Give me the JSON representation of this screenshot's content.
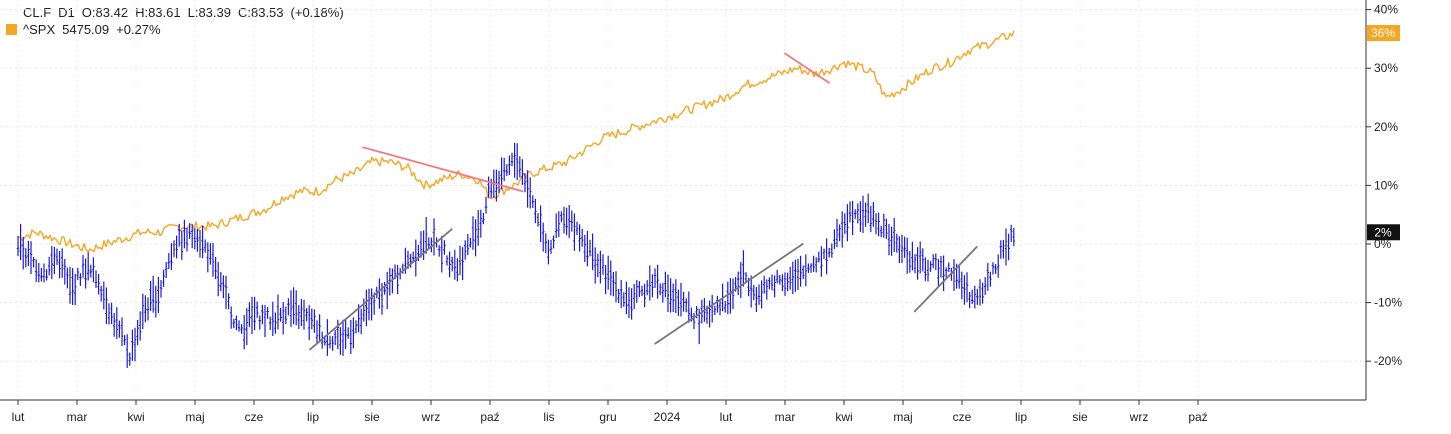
{
  "legend": {
    "primary": {
      "symbol": "CL.F",
      "interval": "D1",
      "open": "O:83.42",
      "high": "H:83.61",
      "low": "L:83.39",
      "close": "C:83.53",
      "change": "(+0.18%)"
    },
    "secondary": {
      "symbol": "^SPX",
      "value": "5475.09",
      "change": "+0.27%"
    }
  },
  "chart_data": {
    "type": "line",
    "title": "",
    "xlabel": "",
    "ylabel": "",
    "x_tick_labels": [
      "lut",
      "mar",
      "kwi",
      "maj",
      "cze",
      "lip",
      "sie",
      "wrz",
      "paź",
      "lis",
      "gru",
      "2024",
      "lut",
      "mar",
      "kwi",
      "maj",
      "cze",
      "lip",
      "sie",
      "wrz",
      "paź"
    ],
    "y_ticks": [
      40,
      30,
      20,
      10,
      0,
      -10,
      -20
    ],
    "y_tick_labels": [
      "40%",
      "30%",
      "20%",
      "10%",
      "0%",
      "-10%",
      "-20%"
    ],
    "ylim": [
      -26,
      41
    ],
    "xlim": [
      0,
      21.4
    ],
    "grid": true,
    "colors": {
      "primary": "#1a1adb",
      "secondary": "#f5a623",
      "resistance": "#f07a80",
      "support": "#777777"
    },
    "series": [
      {
        "name": "CL.F",
        "style": "ohlc",
        "badge": "2%",
        "x": [
          0.0,
          0.23,
          0.45,
          0.68,
          0.9,
          1.13,
          1.36,
          1.58,
          1.9,
          2.15,
          2.4,
          2.65,
          2.85,
          3.0,
          3.2,
          3.4,
          3.75,
          4.0,
          4.3,
          4.6,
          4.95,
          5.2,
          5.5,
          5.75,
          6.0,
          6.3,
          6.6,
          6.95,
          7.2,
          7.45,
          7.7,
          7.9,
          8.0,
          8.2,
          8.45,
          8.7,
          9.0,
          9.2,
          9.45,
          9.8,
          10.1,
          10.4,
          10.8,
          11.2,
          11.55,
          11.85,
          12.0,
          12.3,
          12.55,
          12.85,
          13.2,
          13.5,
          13.8,
          14.0,
          14.2,
          14.45,
          14.7,
          14.9,
          15.2,
          15.5,
          15.8,
          16.0,
          16.25,
          16.6,
          16.9
        ],
        "values": [
          0,
          -3,
          -5,
          -2,
          -8,
          -4,
          -6,
          -12,
          -19,
          -11,
          -8,
          0,
          1,
          2,
          -1,
          -6,
          -15,
          -12,
          -13,
          -11,
          -13,
          -16,
          -16,
          -14,
          -10,
          -7,
          -3,
          1,
          -1,
          -4,
          1,
          5,
          10,
          11,
          15,
          8,
          -1,
          4,
          3,
          -3,
          -7,
          -10,
          -6,
          -10,
          -13,
          -10,
          -10,
          -5,
          -9,
          -6,
          -6,
          -3,
          -1,
          4,
          6,
          5,
          2,
          0,
          -3,
          -4,
          -4,
          -7,
          -10,
          -3,
          2
        ]
      },
      {
        "name": "^SPX",
        "style": "line",
        "badge": "36%",
        "x": [
          0.0,
          0.3,
          0.6,
          0.9,
          1.2,
          1.5,
          1.8,
          2.1,
          2.4,
          2.7,
          3.0,
          3.3,
          3.6,
          3.9,
          4.2,
          4.5,
          4.8,
          5.1,
          5.4,
          5.7,
          6.0,
          6.3,
          6.6,
          6.9,
          7.2,
          7.5,
          7.8,
          8.0,
          8.2,
          8.4,
          8.7,
          9.0,
          9.3,
          9.6,
          9.9,
          10.2,
          10.5,
          10.8,
          11.1,
          11.4,
          11.7,
          12.0,
          12.3,
          12.6,
          12.9,
          13.2,
          13.5,
          13.8,
          14.0,
          14.3,
          14.5,
          14.7,
          14.9,
          15.2,
          15.5,
          15.8,
          16.1,
          16.4,
          16.9
        ],
        "values": [
          1,
          2,
          1,
          0,
          -1,
          0,
          1,
          2,
          2,
          3,
          3,
          3,
          4,
          5,
          6,
          8,
          9,
          9,
          11,
          12,
          14,
          14,
          13,
          10,
          11,
          12,
          11,
          8,
          9,
          10,
          12,
          13,
          14,
          16,
          18,
          19,
          20,
          21,
          22,
          23,
          24,
          25,
          27,
          28,
          29,
          30,
          29,
          30,
          31,
          30,
          29,
          25,
          26,
          28,
          30,
          31,
          33,
          34,
          36
        ]
      }
    ],
    "annotations": [
      {
        "type": "trendline",
        "color": "resistance",
        "x": [
          5.85,
          8.55
        ],
        "y": [
          16.5,
          9
        ]
      },
      {
        "type": "trendline",
        "color": "resistance",
        "x": [
          13.0,
          13.75
        ],
        "y": [
          32.5,
          27.5
        ]
      },
      {
        "type": "trendline",
        "color": "support",
        "x": [
          4.95,
          7.35
        ],
        "y": [
          -18,
          2.5
        ]
      },
      {
        "type": "trendline",
        "color": "support",
        "x": [
          10.8,
          13.3
        ],
        "y": [
          -17,
          0
        ]
      },
      {
        "type": "trendline",
        "color": "support",
        "x": [
          15.2,
          16.25
        ],
        "y": [
          -11.5,
          -0.5
        ]
      }
    ]
  }
}
